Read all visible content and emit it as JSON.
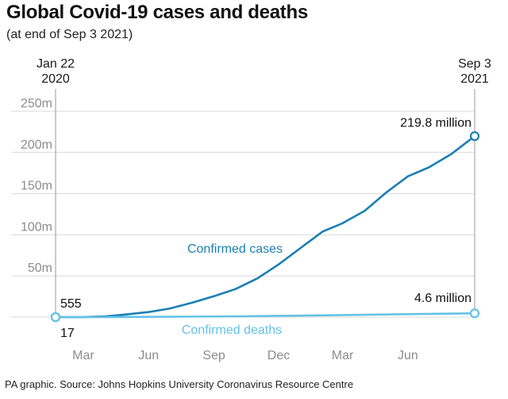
{
  "header": {
    "title": "Global Covid-19 cases and deaths",
    "subtitle": "(at end of Sep 3 2021)"
  },
  "footer": {
    "source": "PA graphic. Source: Johns Hopkins University Coronavirus Resource Centre"
  },
  "colors": {
    "cases": "#1b7fb3",
    "deaths": "#64c2e6",
    "grid": "#d9d9d9",
    "tick": "#8c8c8c"
  },
  "chart_data": {
    "type": "line",
    "title": "Global Covid-19 cases and deaths",
    "subtitle": "(at end of Sep 3 2021)",
    "xlabel": "",
    "ylabel": "",
    "x_range": [
      "2020-01-22",
      "2021-09-03"
    ],
    "ylim": [
      0,
      250000000
    ],
    "grid": true,
    "legend": "inline labels",
    "y_ticks": [
      {
        "label": "50m",
        "value": 50000000
      },
      {
        "label": "100m",
        "value": 100000000
      },
      {
        "label": "150m",
        "value": 150000000
      },
      {
        "label": "200m",
        "value": 200000000
      },
      {
        "label": "250m",
        "value": 250000000
      }
    ],
    "x_ticks": [
      {
        "label": "Mar",
        "date": "2020-03-01"
      },
      {
        "label": "Jun",
        "date": "2020-06-01"
      },
      {
        "label": "Sep",
        "date": "2020-09-01"
      },
      {
        "label": "Dec",
        "date": "2020-12-01"
      },
      {
        "label": "Mar",
        "date": "2021-03-01"
      },
      {
        "label": "Jun",
        "date": "2021-06-01"
      }
    ],
    "edge_labels": {
      "start_line1": "Jan 22",
      "start_line2": "2020",
      "end_line1": "Sep 3",
      "end_line2": "2021"
    },
    "series": [
      {
        "name": "Confirmed cases",
        "color": "#1b7fb3",
        "start_label": "555",
        "end_label": "219.8 million",
        "points": [
          {
            "x": "2020-01-22",
            "y": 555
          },
          {
            "x": "2020-03-01",
            "y": 90000
          },
          {
            "x": "2020-04-01",
            "y": 900000
          },
          {
            "x": "2020-05-01",
            "y": 3300000
          },
          {
            "x": "2020-06-01",
            "y": 6200000
          },
          {
            "x": "2020-07-01",
            "y": 10500000
          },
          {
            "x": "2020-08-01",
            "y": 17500000
          },
          {
            "x": "2020-09-01",
            "y": 25500000
          },
          {
            "x": "2020-10-01",
            "y": 34000000
          },
          {
            "x": "2020-11-01",
            "y": 47000000
          },
          {
            "x": "2020-12-01",
            "y": 64000000
          },
          {
            "x": "2021-01-01",
            "y": 84000000
          },
          {
            "x": "2021-02-01",
            "y": 104000000
          },
          {
            "x": "2021-03-01",
            "y": 114000000
          },
          {
            "x": "2021-04-01",
            "y": 129000000
          },
          {
            "x": "2021-05-01",
            "y": 151000000
          },
          {
            "x": "2021-06-01",
            "y": 171000000
          },
          {
            "x": "2021-07-01",
            "y": 182000000
          },
          {
            "x": "2021-08-01",
            "y": 198000000
          },
          {
            "x": "2021-09-03",
            "y": 219800000
          }
        ]
      },
      {
        "name": "Confirmed deaths",
        "color": "#64c2e6",
        "start_label": "17",
        "end_label": "4.6 million",
        "points": [
          {
            "x": "2020-01-22",
            "y": 17
          },
          {
            "x": "2020-04-01",
            "y": 50000
          },
          {
            "x": "2020-07-01",
            "y": 510000
          },
          {
            "x": "2020-10-01",
            "y": 1000000
          },
          {
            "x": "2021-01-01",
            "y": 1800000
          },
          {
            "x": "2021-04-01",
            "y": 2850000
          },
          {
            "x": "2021-07-01",
            "y": 3950000
          },
          {
            "x": "2021-09-03",
            "y": 4600000
          }
        ]
      }
    ]
  }
}
